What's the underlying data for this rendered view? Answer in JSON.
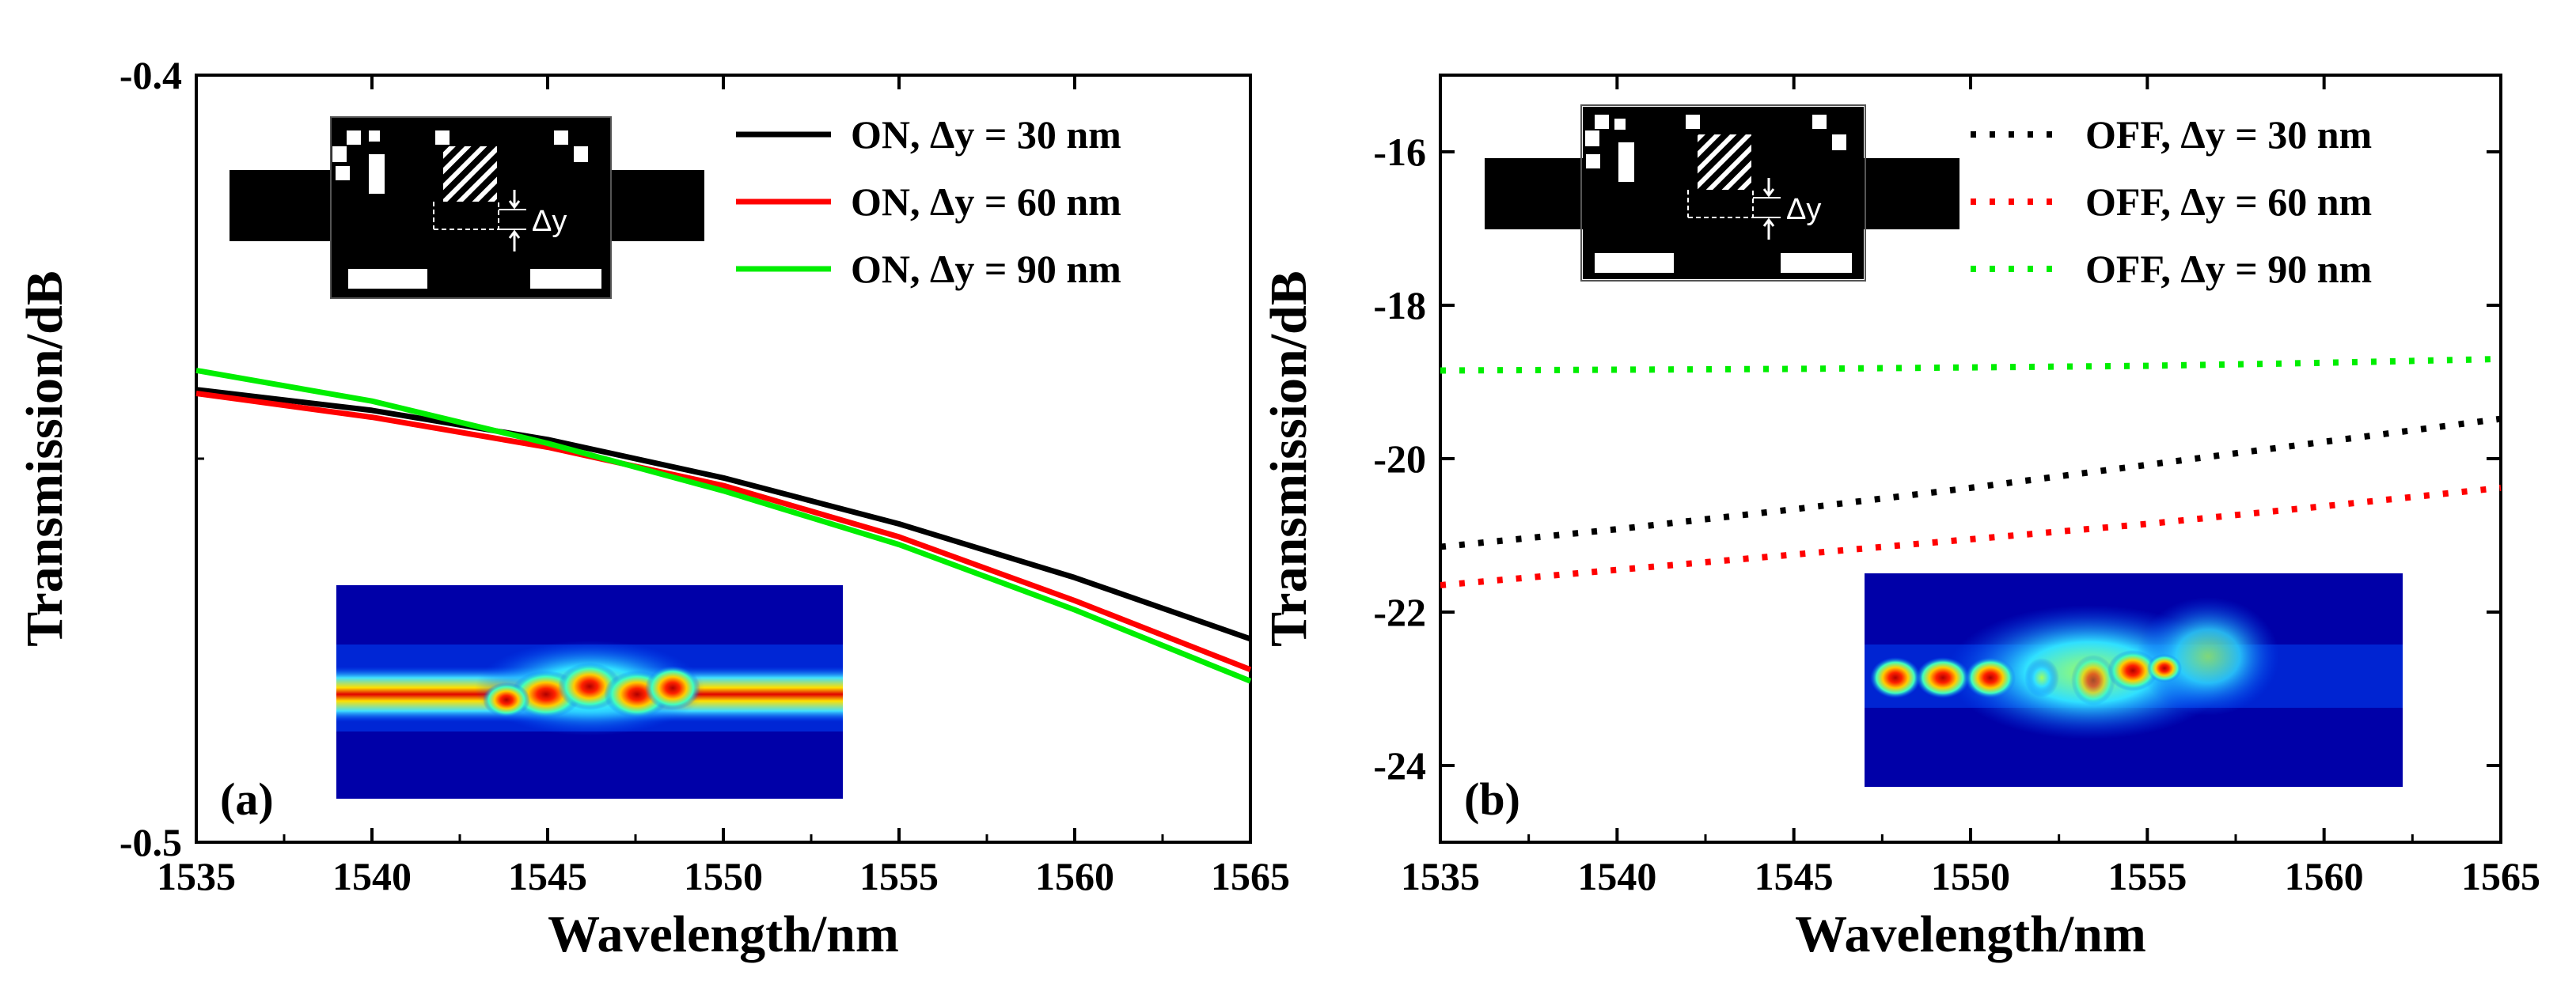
{
  "chart_data": [
    {
      "type": "line",
      "panel_label": "(a)",
      "xlabel": "Wavelength/nm",
      "ylabel": "Transmission/dB",
      "xlim": [
        1535,
        1565
      ],
      "ylim": [
        -0.5,
        -0.4
      ],
      "x_ticks": [
        1535,
        1540,
        1545,
        1550,
        1555,
        1560,
        1565
      ],
      "y_ticks": [
        -0.5,
        -0.4
      ],
      "y_tick_labels": [
        "-0.5",
        "-0.4"
      ],
      "legend_position": "top-right",
      "series": [
        {
          "name": "ON, Δy = 30 nm",
          "color": "#000000",
          "style": "solid",
          "x": [
            1535,
            1540,
            1545,
            1550,
            1555,
            1560,
            1565
          ],
          "y": [
            -0.441,
            -0.4437,
            -0.4475,
            -0.4525,
            -0.4585,
            -0.4655,
            -0.4735
          ]
        },
        {
          "name": "ON, Δy = 60 nm",
          "color": "#ff0000",
          "style": "solid",
          "x": [
            1535,
            1540,
            1545,
            1550,
            1555,
            1560,
            1565
          ],
          "y": [
            -0.4415,
            -0.4446,
            -0.4485,
            -0.4535,
            -0.4602,
            -0.4685,
            -0.4775
          ]
        },
        {
          "name": "ON, Δy = 90 nm",
          "color": "#00ee00",
          "style": "solid",
          "x": [
            1535,
            1540,
            1545,
            1550,
            1555,
            1560,
            1565
          ],
          "y": [
            -0.4385,
            -0.4425,
            -0.448,
            -0.4542,
            -0.4612,
            -0.4697,
            -0.479
          ]
        }
      ]
    },
    {
      "type": "line",
      "panel_label": "(b)",
      "xlabel": "Wavelength/nm",
      "ylabel": "Transmission/dB",
      "xlim": [
        1535,
        1565
      ],
      "ylim": [
        -25,
        -15
      ],
      "x_ticks": [
        1535,
        1540,
        1545,
        1550,
        1555,
        1560,
        1565
      ],
      "y_ticks": [
        -24,
        -22,
        -20,
        -18,
        -16
      ],
      "y_tick_labels": [
        "-24",
        "-22",
        "-20",
        "-18",
        "-16"
      ],
      "legend_position": "top-right",
      "series": [
        {
          "name": "OFF, Δy = 30 nm",
          "color": "#000000",
          "style": "dotted",
          "x": [
            1535,
            1540,
            1545,
            1550,
            1555,
            1560,
            1565
          ],
          "y": [
            -21.15,
            -20.92,
            -20.66,
            -20.38,
            -20.08,
            -19.78,
            -19.48
          ]
        },
        {
          "name": "OFF, Δy = 60 nm",
          "color": "#ff0000",
          "style": "dotted",
          "x": [
            1535,
            1540,
            1545,
            1550,
            1555,
            1560,
            1565
          ],
          "y": [
            -21.65,
            -21.45,
            -21.25,
            -21.05,
            -20.85,
            -20.62,
            -20.38
          ]
        },
        {
          "name": "OFF, Δy = 90 nm",
          "color": "#00ee00",
          "style": "dotted",
          "x": [
            1535,
            1540,
            1545,
            1550,
            1555,
            1560,
            1565
          ],
          "y": [
            -18.85,
            -18.84,
            -18.83,
            -18.81,
            -18.79,
            -18.75,
            -18.7
          ]
        }
      ]
    }
  ],
  "inset": {
    "delta_label": "Δy"
  }
}
